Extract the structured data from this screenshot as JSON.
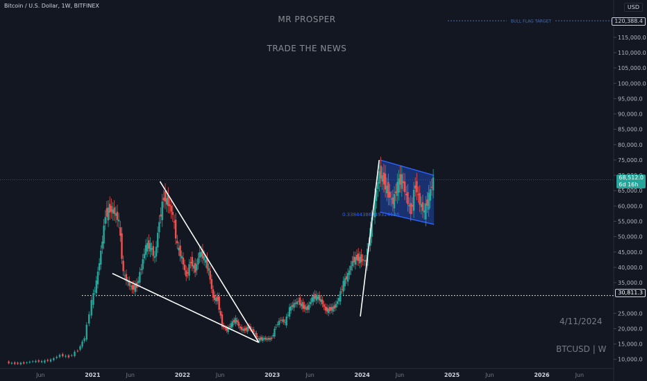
{
  "header": {
    "symbol_line": "Bitcoin / U.S. Dollar, 1W, BITFINEX",
    "currency": "USD"
  },
  "overlays": {
    "title": "MR PROSPER",
    "subtitle": "TRADE THE NEWS",
    "date_note": "4/11/2024",
    "ticker_note": "BTCUSD | W",
    "target_label": "BULL FLAG TARGET",
    "fib_label": "0.33844386049324636"
  },
  "price_tags": {
    "target": "120,388.4",
    "last_price": "68,512.0",
    "countdown": "6d 16h",
    "dotted_level": "30,811.3"
  },
  "colors": {
    "background": "#131722",
    "up": "#26a69a",
    "down": "#ef5350",
    "flag_upper": "#2962ff",
    "trendline": "#ffffff"
  },
  "chart_data": {
    "type": "candlestick",
    "x_tick_labels": [
      "Jun",
      "2021",
      "Jun",
      "2022",
      "Jun",
      "2023",
      "Jun",
      "2024",
      "Jun",
      "2025",
      "Jun",
      "2026",
      "Jun"
    ],
    "y_tick_labels": [
      "115,000.0",
      "110,000.0",
      "105,000.0",
      "100,000.0",
      "95,000.0",
      "90,000.0",
      "85,000.0",
      "80,000.0",
      "75,000.0",
      "70,000.0",
      "65,000.0",
      "60,000.0",
      "55,000.0",
      "50,000.0",
      "45,000.0",
      "40,000.0",
      "35,000.0",
      "25,000.0",
      "20,000.0",
      "15,000.0",
      "10,000.0"
    ],
    "y_range": [
      7000,
      124000
    ],
    "x_range_years": [
      2020.0,
      2026.8
    ],
    "last_price": 68512.0,
    "target_level": 120388.4,
    "dotted_level": 30811.3,
    "weekly_closes": [
      [
        2020.05,
        9000
      ],
      [
        2020.15,
        8600
      ],
      [
        2020.25,
        8800
      ],
      [
        2020.35,
        9400
      ],
      [
        2020.45,
        9300
      ],
      [
        2020.55,
        9800
      ],
      [
        2020.65,
        11400
      ],
      [
        2020.75,
        10800
      ],
      [
        2020.85,
        13000
      ],
      [
        2020.92,
        17000
      ],
      [
        2021.0,
        29000
      ],
      [
        2021.05,
        35000
      ],
      [
        2021.1,
        45000
      ],
      [
        2021.15,
        57000
      ],
      [
        2021.2,
        59000
      ],
      [
        2021.25,
        58000
      ],
      [
        2021.3,
        55000
      ],
      [
        2021.35,
        38000
      ],
      [
        2021.4,
        35000
      ],
      [
        2021.45,
        33000
      ],
      [
        2021.5,
        34000
      ],
      [
        2021.55,
        40000
      ],
      [
        2021.6,
        47000
      ],
      [
        2021.65,
        47000
      ],
      [
        2021.7,
        43000
      ],
      [
        2021.75,
        55000
      ],
      [
        2021.8,
        63000
      ],
      [
        2021.85,
        61000
      ],
      [
        2021.9,
        57000
      ],
      [
        2021.95,
        47000
      ],
      [
        2022.0,
        43000
      ],
      [
        2022.05,
        37000
      ],
      [
        2022.1,
        42000
      ],
      [
        2022.15,
        39000
      ],
      [
        2022.2,
        45000
      ],
      [
        2022.25,
        43000
      ],
      [
        2022.3,
        39000
      ],
      [
        2022.35,
        30000
      ],
      [
        2022.4,
        29500
      ],
      [
        2022.45,
        21000
      ],
      [
        2022.5,
        19500
      ],
      [
        2022.55,
        21500
      ],
      [
        2022.6,
        23000
      ],
      [
        2022.65,
        20000
      ],
      [
        2022.7,
        19500
      ],
      [
        2022.75,
        20500
      ],
      [
        2022.8,
        19000
      ],
      [
        2022.85,
        16500
      ],
      [
        2022.9,
        16800
      ],
      [
        2022.95,
        16600
      ],
      [
        2023.0,
        16800
      ],
      [
        2023.05,
        21000
      ],
      [
        2023.1,
        23000
      ],
      [
        2023.15,
        22000
      ],
      [
        2023.2,
        26500
      ],
      [
        2023.25,
        28000
      ],
      [
        2023.3,
        29000
      ],
      [
        2023.35,
        27000
      ],
      [
        2023.4,
        26500
      ],
      [
        2023.45,
        30000
      ],
      [
        2023.5,
        30500
      ],
      [
        2023.55,
        29200
      ],
      [
        2023.6,
        26000
      ],
      [
        2023.65,
        26200
      ],
      [
        2023.7,
        27000
      ],
      [
        2023.75,
        30000
      ],
      [
        2023.8,
        35000
      ],
      [
        2023.85,
        37500
      ],
      [
        2023.9,
        42000
      ],
      [
        2023.95,
        43000
      ],
      [
        2024.0,
        42500
      ],
      [
        2024.05,
        42000
      ],
      [
        2024.1,
        52000
      ],
      [
        2024.15,
        62000
      ],
      [
        2024.2,
        71000
      ],
      [
        2024.25,
        68000
      ],
      [
        2024.3,
        64000
      ],
      [
        2024.35,
        61000
      ],
      [
        2024.4,
        67000
      ],
      [
        2024.45,
        69000
      ],
      [
        2024.5,
        63000
      ],
      [
        2024.55,
        58000
      ],
      [
        2024.6,
        67000
      ],
      [
        2024.65,
        61000
      ],
      [
        2024.7,
        58000
      ],
      [
        2024.75,
        63000
      ],
      [
        2024.8,
        68500
      ]
    ]
  }
}
